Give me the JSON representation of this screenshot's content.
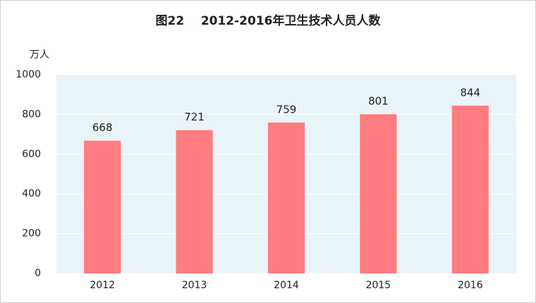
{
  "chart_data": {
    "type": "bar",
    "title": "图22    2012-2016年卫生技术人员人数",
    "y_label": "万人",
    "categories": [
      "2012",
      "2013",
      "2014",
      "2015",
      "2016"
    ],
    "values": [
      668,
      721,
      759,
      801,
      844
    ],
    "color": "#ff7c80",
    "ylim": [
      0,
      1000
    ],
    "yticks": [
      0,
      200,
      400,
      600,
      800,
      1000
    ],
    "grid": true
  }
}
